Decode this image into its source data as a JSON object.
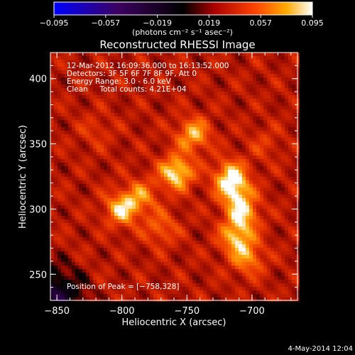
{
  "chart_data": {
    "type": "heatmap",
    "title": "Reconstructed RHESSI Image",
    "xlabel": "Heliocentric X (arcsec)",
    "ylabel": "Heliocentric Y (arcsec)",
    "xlim": [
      -855,
      -665
    ],
    "ylim": [
      230,
      420
    ],
    "x_ticks": [
      -850,
      -800,
      -750,
      -700
    ],
    "y_ticks": [
      250,
      300,
      350,
      400
    ],
    "x_tick_labels": [
      "−850",
      "−800",
      "−750",
      "−700"
    ],
    "y_tick_labels": [
      "250",
      "300",
      "350",
      "400"
    ],
    "colorbar": {
      "range": [
        -0.095,
        0.095
      ],
      "ticks": [
        -0.095,
        -0.057,
        -0.019,
        0.019,
        0.057,
        0.095
      ],
      "tick_labels": [
        "−0.095",
        "−0.057",
        "−0.019",
        "0.019",
        "0.057",
        "0.095"
      ],
      "units_label": "(photons cm⁻² s⁻¹ asec⁻²)"
    },
    "annotations": [
      "12-Mar-2012 16:09:36.000 to 16:13:52.000",
      "Detectors: 3F 5F 6F 7F 8F 9F, Att 0",
      "Energy Range: 3.0 - 6.0 keV",
      "Clean     Total counts: 4.21E+04"
    ],
    "peak_label": "Position of Peak = [−758,328]",
    "sources": [
      {
        "x": -758,
        "y": 328,
        "value": 0.095
      },
      {
        "x": -745,
        "y": 357,
        "value": 0.08
      },
      {
        "x": -800,
        "y": 300,
        "value": 0.085
      },
      {
        "x": -785,
        "y": 310,
        "value": 0.065
      },
      {
        "x": -717,
        "y": 325,
        "value": 0.085
      },
      {
        "x": -712,
        "y": 312,
        "value": 0.075
      },
      {
        "x": -707,
        "y": 296,
        "value": 0.078
      },
      {
        "x": -712,
        "y": 278,
        "value": 0.08
      },
      {
        "x": -703,
        "y": 262,
        "value": 0.068
      },
      {
        "x": -770,
        "y": 285,
        "value": 0.06
      },
      {
        "x": -820,
        "y": 360,
        "value": 0.045
      },
      {
        "x": -690,
        "y": 350,
        "value": 0.045
      }
    ]
  },
  "footer": {
    "timestamp": "4-May-2014 12:04"
  }
}
